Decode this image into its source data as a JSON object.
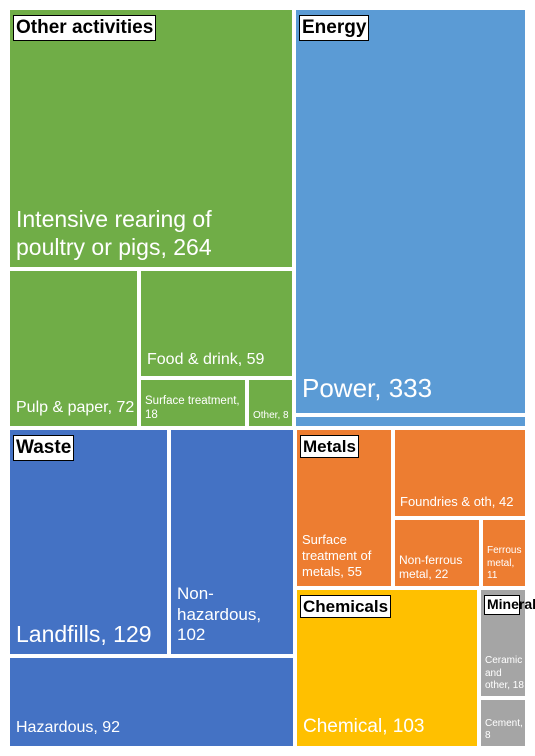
{
  "chart_data": {
    "type": "treemap",
    "groups": [
      {
        "name": "Other activities",
        "color": "#70AD47",
        "items": [
          {
            "label": "Intensive rearing of poultry or pigs, 264",
            "value": 264
          },
          {
            "label": "Pulp & paper, 72",
            "value": 72
          },
          {
            "label": "Food & drink, 59",
            "value": 59
          },
          {
            "label": "Surface treatment, 18",
            "value": 18
          },
          {
            "label": "Other, 8",
            "value": 8
          }
        ]
      },
      {
        "name": "Energy",
        "color": "#5B9BD5",
        "items": [
          {
            "label": "Power, 333",
            "value": 333
          }
        ]
      },
      {
        "name": "Waste",
        "color": "#4472C4",
        "items": [
          {
            "label": "Landfills, 129",
            "value": 129
          },
          {
            "label": "Non-hazardous, 102",
            "value": 102
          },
          {
            "label": "Hazardous, 92",
            "value": 92
          }
        ]
      },
      {
        "name": "Metals",
        "color": "#ED7D31",
        "items": [
          {
            "label": "Surface treatment of metals, 55",
            "value": 55
          },
          {
            "label": "Foundries & oth, 42",
            "value": 42
          },
          {
            "label": "Non-ferrous metal, 22",
            "value": 22
          },
          {
            "label": "Ferrous metal, 11",
            "value": 11
          }
        ]
      },
      {
        "name": "Chemicals",
        "color": "#FFC000",
        "items": [
          {
            "label": "Chemical, 103",
            "value": 103
          }
        ]
      },
      {
        "name": "Minerals",
        "color": "#A5A5A5",
        "items": [
          {
            "label": "Ceramic and other, 18",
            "value": 18
          },
          {
            "label": "Cement, 8",
            "value": 8
          }
        ]
      }
    ]
  }
}
